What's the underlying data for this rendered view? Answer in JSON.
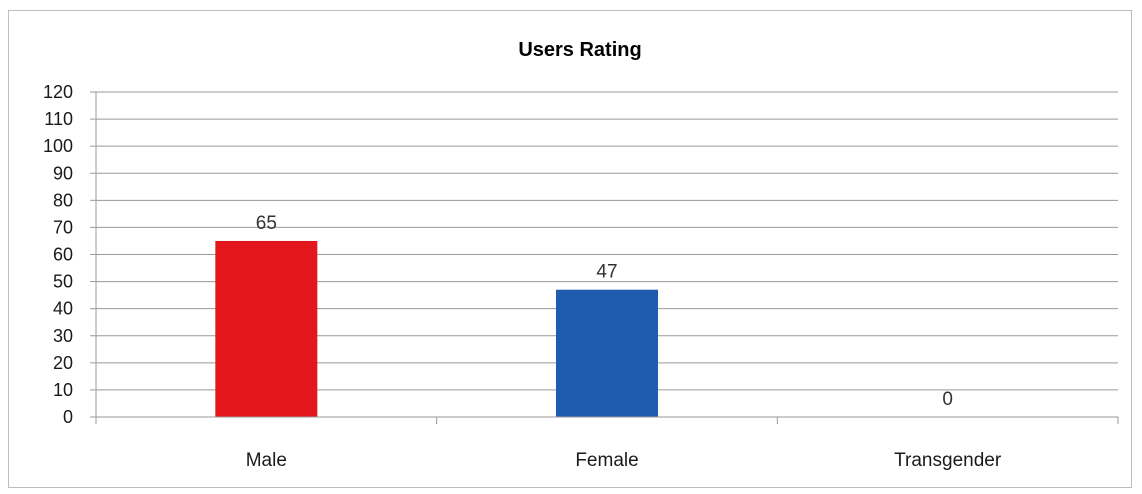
{
  "chart_data": {
    "type": "bar",
    "title": "Users Rating",
    "categories": [
      "Male",
      "Female",
      "Transgender"
    ],
    "values": [
      65,
      47,
      0
    ],
    "colors": [
      "#e3161b",
      "#1f5cb0",
      "#1f5cb0"
    ],
    "ylim": [
      0,
      120
    ],
    "yticks": [
      0,
      10,
      20,
      30,
      40,
      50,
      60,
      70,
      80,
      90,
      100,
      110,
      120
    ],
    "grid": true,
    "legend": "none"
  }
}
